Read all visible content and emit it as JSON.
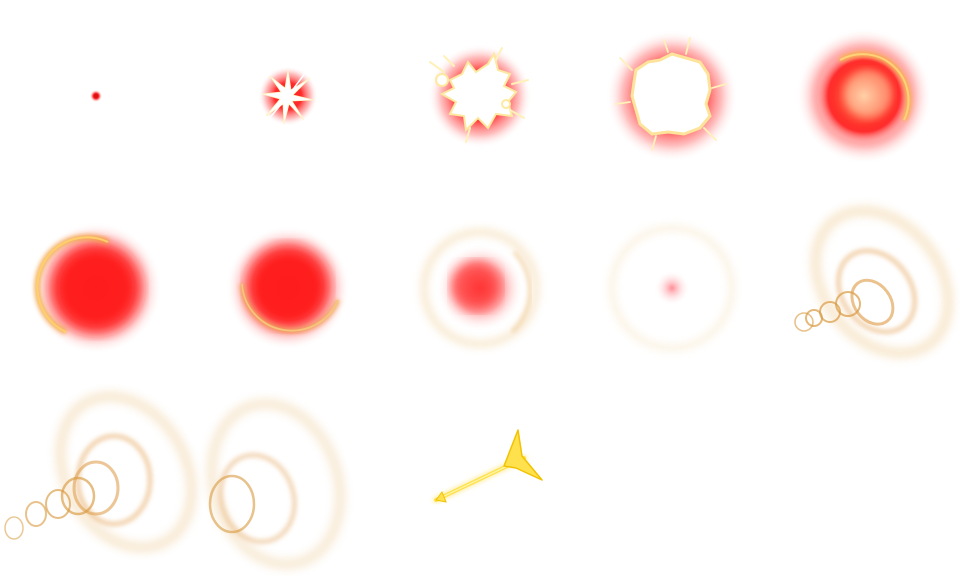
{
  "sprite_sheet": {
    "grid": {
      "columns": 5,
      "rows": 3
    },
    "palette": {
      "core_red": "#ff1a1a",
      "flash_white": "#ffffff",
      "spark_yellow": "#fff2a8",
      "ring_gold": "#e8a840",
      "ring_gold_light": "#f4cf8c",
      "arrow_yellow": "#ffe14d",
      "arrow_edge": "#f2c200"
    },
    "frames": [
      {
        "index": 1,
        "content": "tiny-red-dot"
      },
      {
        "index": 2,
        "content": "small-star-burst"
      },
      {
        "index": 3,
        "content": "white-splash-burst"
      },
      {
        "index": 4,
        "content": "large-white-flash"
      },
      {
        "index": 5,
        "content": "red-glow-with-gold-rim"
      },
      {
        "index": 6,
        "content": "red-glow-with-left-arc"
      },
      {
        "index": 7,
        "content": "red-glow-with-bottom-arc"
      },
      {
        "index": 8,
        "content": "fading-red-glow-with-halo"
      },
      {
        "index": 9,
        "content": "faint-pink-dot-with-halo"
      },
      {
        "index": 10,
        "content": "shockwave-rings"
      },
      {
        "index": 11,
        "content": "shockwave-rings-spread"
      },
      {
        "index": 12,
        "content": "shockwave-rings-fading"
      },
      {
        "index": 13,
        "content": "golden-arrow"
      },
      {
        "index": 14,
        "content": "empty"
      },
      {
        "index": 15,
        "content": "empty"
      }
    ]
  }
}
